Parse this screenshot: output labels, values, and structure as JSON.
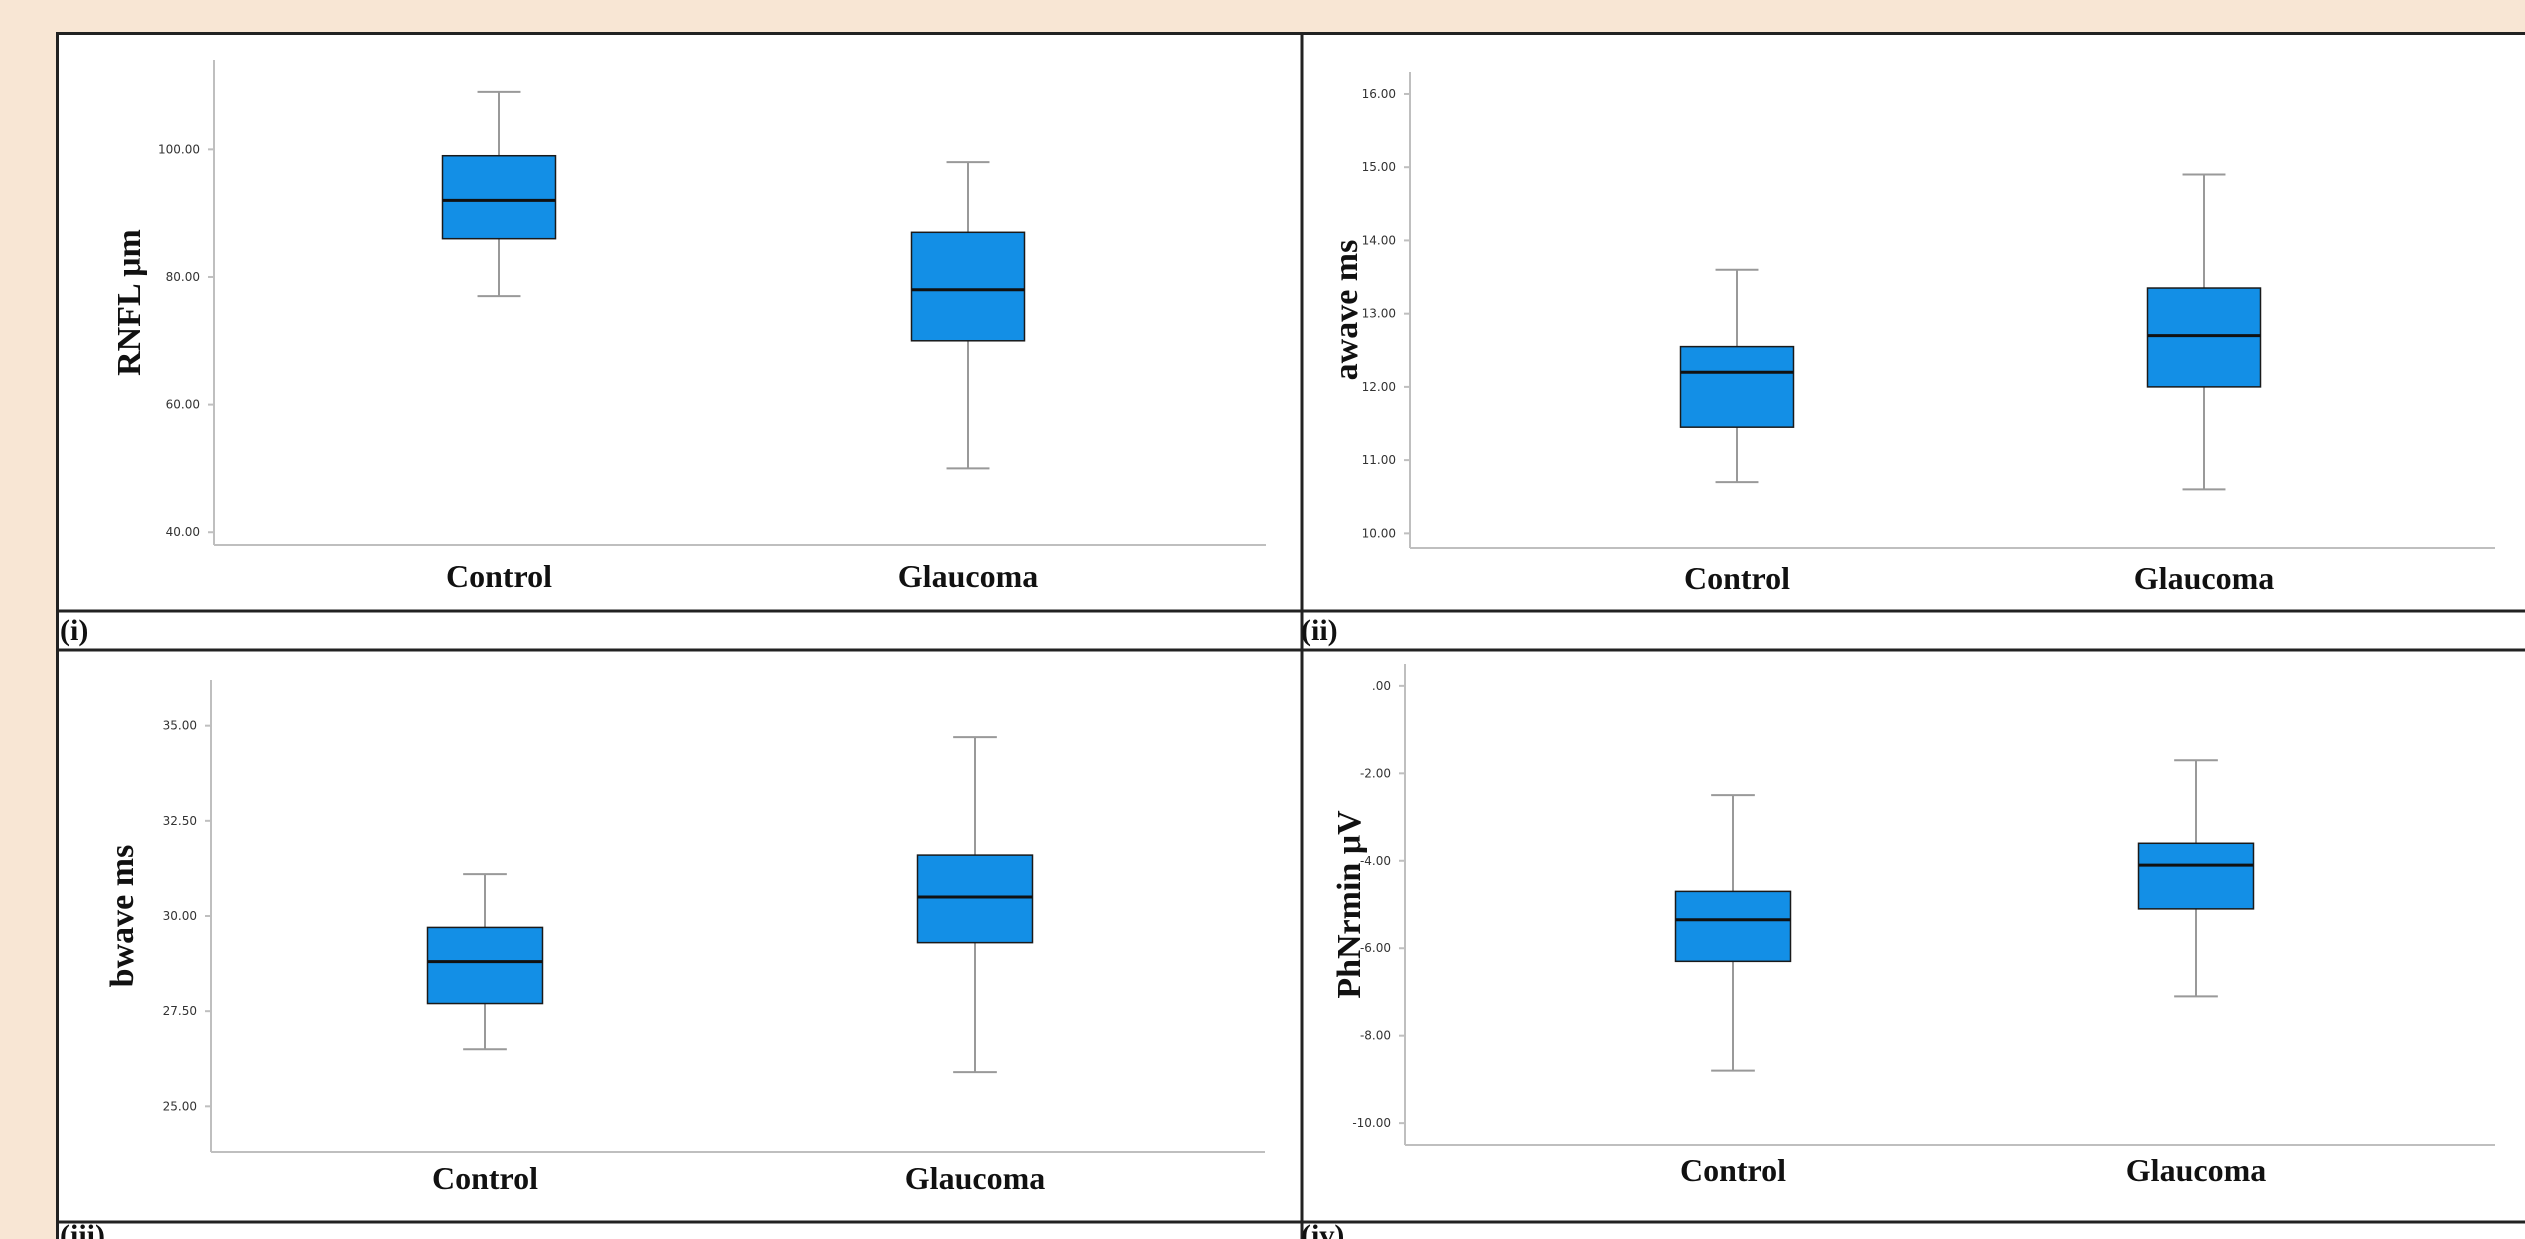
{
  "colors": {
    "page_background": "#f8e6d4",
    "box_fill": "#138fe6",
    "box_stroke": "#1a1a1a",
    "median": "#111111",
    "whisker": "#999999",
    "axis": "#bfbfbf",
    "frame": "#222222"
  },
  "panel_labels": [
    "(i)",
    "(ii)",
    "(iii)",
    "(iv)"
  ],
  "chart_data": [
    {
      "type": "box",
      "panel": "(i)",
      "ylabel": "RNFL  μm",
      "categories": [
        "Control",
        "Glaucoma"
      ],
      "ylim": [
        38,
        114
      ],
      "ticks": [
        40,
        60,
        80,
        100
      ],
      "tick_labels": [
        "40.00",
        "60.00",
        "80.00",
        "100.00"
      ],
      "boxes": [
        {
          "category": "Control",
          "min": 77,
          "q1": 86,
          "median": 92,
          "q3": 99,
          "max": 109
        },
        {
          "category": "Glaucoma",
          "min": 50,
          "q1": 70,
          "median": 78,
          "q3": 87,
          "max": 98
        }
      ]
    },
    {
      "type": "box",
      "panel": "(ii)",
      "ylabel": "awave ms",
      "categories": [
        "Control",
        "Glaucoma"
      ],
      "ylim": [
        9.8,
        16.3
      ],
      "ticks": [
        10,
        11,
        12,
        13,
        14,
        15,
        16
      ],
      "tick_labels": [
        "10.00",
        "11.00",
        "12.00",
        "13.00",
        "14.00",
        "15.00",
        "16.00"
      ],
      "boxes": [
        {
          "category": "Control",
          "min": 10.7,
          "q1": 11.45,
          "median": 12.2,
          "q3": 12.55,
          "max": 13.6
        },
        {
          "category": "Glaucoma",
          "min": 10.6,
          "q1": 12.0,
          "median": 12.7,
          "q3": 13.35,
          "max": 14.9
        }
      ]
    },
    {
      "type": "box",
      "panel": "(iii)",
      "ylabel": "bwave ms",
      "categories": [
        "Control",
        "Glaucoma"
      ],
      "ylim": [
        23.8,
        36.2
      ],
      "ticks": [
        25,
        27.5,
        30,
        32.5,
        35
      ],
      "tick_labels": [
        "25.00",
        "27.50",
        "30.00",
        "32.50",
        "35.00"
      ],
      "boxes": [
        {
          "category": "Control",
          "min": 26.5,
          "q1": 27.7,
          "median": 28.8,
          "q3": 29.7,
          "max": 31.1
        },
        {
          "category": "Glaucoma",
          "min": 25.9,
          "q1": 29.3,
          "median": 30.5,
          "q3": 31.6,
          "max": 34.7
        }
      ]
    },
    {
      "type": "box",
      "panel": "(iv)",
      "ylabel": "PhNrmin μV",
      "categories": [
        "Control",
        "Glaucoma"
      ],
      "ylim": [
        -10.5,
        0.5
      ],
      "ticks": [
        -10,
        -8,
        -6,
        -4,
        -2,
        0
      ],
      "tick_labels": [
        "-10.00",
        "-8.00",
        "-6.00",
        "-4.00",
        "-2.00",
        ".00"
      ],
      "boxes": [
        {
          "category": "Control",
          "min": -8.8,
          "q1": -6.3,
          "median": -5.35,
          "q3": -4.7,
          "max": -2.5
        },
        {
          "category": "Glaucoma",
          "min": -7.1,
          "q1": -5.1,
          "median": -4.1,
          "q3": -3.6,
          "max": -1.7
        }
      ]
    }
  ]
}
